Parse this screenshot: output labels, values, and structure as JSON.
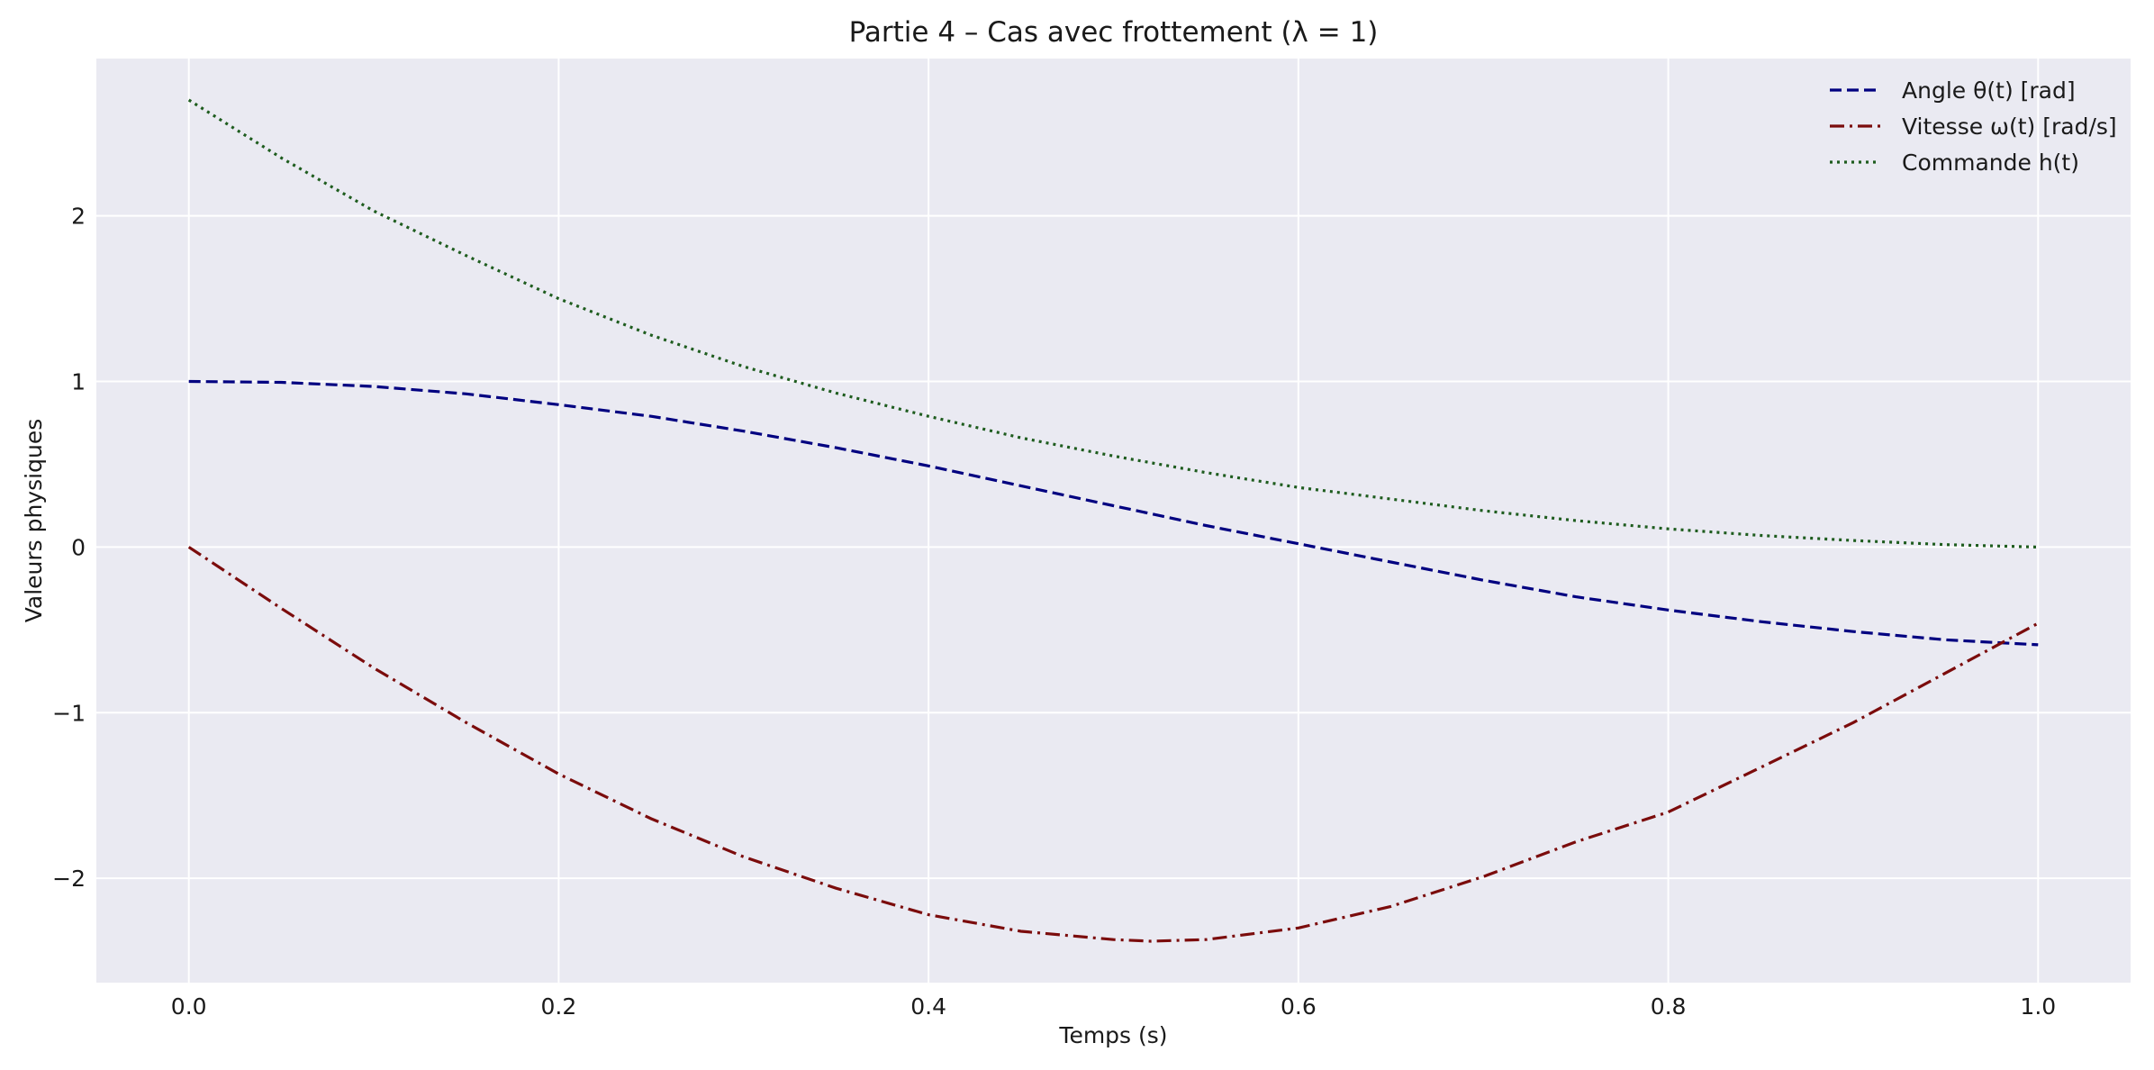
{
  "chart_data": {
    "type": "line",
    "title": "Partie 4 – Cas avec frottement (λ = 1)",
    "xlabel": "Temps (s)",
    "ylabel": "Valeurs physiques",
    "xlim": [
      -0.05,
      1.05
    ],
    "ylim": [
      -2.63,
      2.95
    ],
    "xticks": [
      0.0,
      0.2,
      0.4,
      0.6,
      0.8,
      1.0
    ],
    "xtick_labels": [
      "0.0",
      "0.2",
      "0.4",
      "0.6",
      "0.8",
      "1.0"
    ],
    "yticks": [
      -2,
      -1,
      0,
      1,
      2
    ],
    "ytick_labels": [
      "−2",
      "−1",
      "0",
      "1",
      "2"
    ],
    "grid": true,
    "legend_position": "top-right",
    "background": "#eaeaf2",
    "series": [
      {
        "name": "Angle θ(t) [rad]",
        "color": "#000080",
        "style": "dashed",
        "x": [
          0.0,
          0.05,
          0.1,
          0.15,
          0.2,
          0.25,
          0.3,
          0.35,
          0.4,
          0.45,
          0.5,
          0.55,
          0.6,
          0.65,
          0.7,
          0.75,
          0.8,
          0.85,
          0.9,
          0.95,
          1.0
        ],
        "y": [
          1.0,
          0.995,
          0.97,
          0.925,
          0.86,
          0.79,
          0.7,
          0.6,
          0.49,
          0.37,
          0.25,
          0.13,
          0.02,
          -0.09,
          -0.2,
          -0.3,
          -0.38,
          -0.45,
          -0.51,
          -0.56,
          -0.59
        ]
      },
      {
        "name": "Vitesse ω(t) [rad/s]",
        "color": "#7b0c0c",
        "style": "dashdot",
        "x": [
          0.0,
          0.05,
          0.1,
          0.15,
          0.2,
          0.25,
          0.3,
          0.35,
          0.4,
          0.45,
          0.5,
          0.52,
          0.55,
          0.6,
          0.65,
          0.7,
          0.75,
          0.8,
          0.85,
          0.9,
          0.95,
          1.0
        ],
        "y": [
          0.0,
          -0.37,
          -0.73,
          -1.06,
          -1.37,
          -1.64,
          -1.87,
          -2.06,
          -2.22,
          -2.32,
          -2.37,
          -2.38,
          -2.37,
          -2.3,
          -2.17,
          -1.99,
          -1.78,
          -1.6,
          -1.33,
          -1.06,
          -0.76,
          -0.46
        ]
      },
      {
        "name": "Commande h(t)",
        "color": "#1e5c1e",
        "style": "dotted",
        "x": [
          0.0,
          0.05,
          0.1,
          0.15,
          0.2,
          0.25,
          0.3,
          0.35,
          0.4,
          0.45,
          0.5,
          0.55,
          0.6,
          0.65,
          0.7,
          0.75,
          0.8,
          0.85,
          0.9,
          0.95,
          1.0
        ],
        "y": [
          2.7,
          2.35,
          2.03,
          1.76,
          1.5,
          1.28,
          1.09,
          0.93,
          0.79,
          0.66,
          0.55,
          0.45,
          0.36,
          0.29,
          0.22,
          0.16,
          0.11,
          0.07,
          0.04,
          0.015,
          0.0
        ]
      }
    ]
  }
}
